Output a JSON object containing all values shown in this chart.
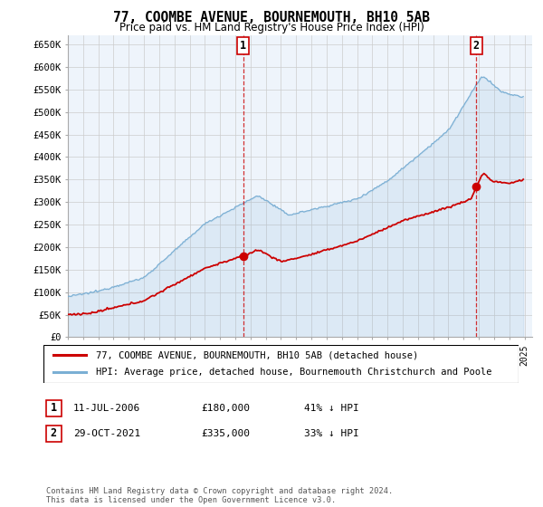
{
  "title": "77, COOMBE AVENUE, BOURNEMOUTH, BH10 5AB",
  "subtitle": "Price paid vs. HM Land Registry's House Price Index (HPI)",
  "ylabel_ticks": [
    "£0",
    "£50K",
    "£100K",
    "£150K",
    "£200K",
    "£250K",
    "£300K",
    "£350K",
    "£400K",
    "£450K",
    "£500K",
    "£550K",
    "£600K",
    "£650K"
  ],
  "ytick_values": [
    0,
    50000,
    100000,
    150000,
    200000,
    250000,
    300000,
    350000,
    400000,
    450000,
    500000,
    550000,
    600000,
    650000
  ],
  "ylim": [
    0,
    670000
  ],
  "xlim_start": 1995.0,
  "xlim_end": 2025.5,
  "hpi_color": "#7bafd4",
  "hpi_fill_color": "#ddeeff",
  "price_color": "#cc0000",
  "sale1_date": 2006.53,
  "sale1_value": 180000,
  "sale2_date": 2021.83,
  "sale2_value": 335000,
  "legend_line1": "77, COOMBE AVENUE, BOURNEMOUTH, BH10 5AB (detached house)",
  "legend_line2": "HPI: Average price, detached house, Bournemouth Christchurch and Poole",
  "table_row1": [
    "1",
    "11-JUL-2006",
    "£180,000",
    "41% ↓ HPI"
  ],
  "table_row2": [
    "2",
    "29-OCT-2021",
    "£335,000",
    "33% ↓ HPI"
  ],
  "footer": "Contains HM Land Registry data © Crown copyright and database right 2024.\nThis data is licensed under the Open Government Licence v3.0.",
  "background_color": "#ffffff",
  "grid_color": "#cccccc"
}
